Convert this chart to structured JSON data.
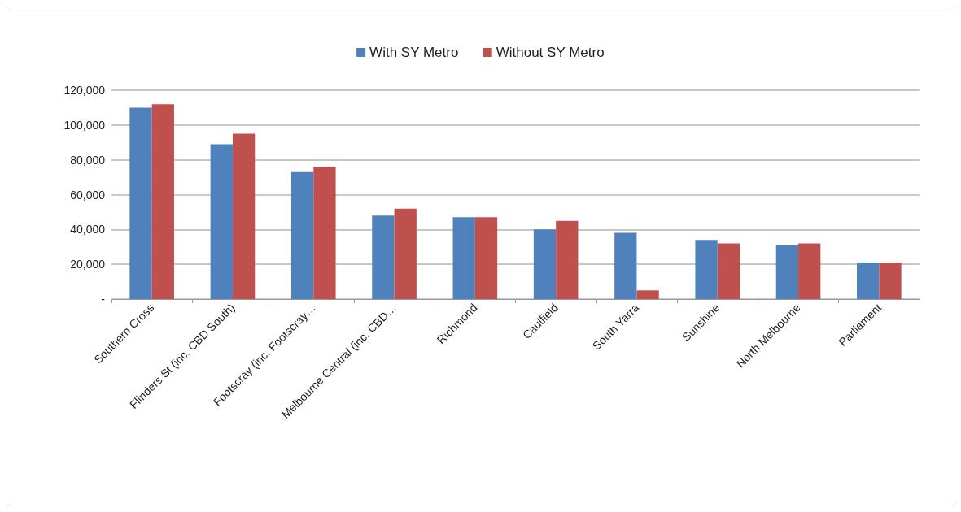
{
  "chart_data": {
    "type": "bar",
    "categories": [
      "Southern Cross",
      "Flinders St (inc. CBD South)",
      "Footscray (inc. Footscray…",
      "Melbourne Central (inc. CBD…",
      "Richmond",
      "Caulfield",
      "South Yarra",
      "Sunshine",
      "North Melbourne",
      "Parliament"
    ],
    "series": [
      {
        "name": "With SY Metro",
        "color": "#4f81bd",
        "values": [
          110000,
          89000,
          73000,
          48000,
          47000,
          40000,
          38000,
          34000,
          31000,
          21000
        ]
      },
      {
        "name": "Without SY Metro",
        "color": "#c0504d",
        "values": [
          112000,
          95000,
          76000,
          52000,
          47000,
          45000,
          5000,
          32000,
          32000,
          21000
        ]
      }
    ],
    "ylim": [
      0,
      120000
    ],
    "yticks": [
      {
        "value": 0,
        "label": "-"
      },
      {
        "value": 20000,
        "label": "20,000"
      },
      {
        "value": 40000,
        "label": "40,000"
      },
      {
        "value": 60000,
        "label": "60,000"
      },
      {
        "value": 80000,
        "label": "80,000"
      },
      {
        "value": 100000,
        "label": "100,000"
      },
      {
        "value": 120000,
        "label": "120,000"
      }
    ],
    "grid": "y",
    "legend": "top"
  }
}
